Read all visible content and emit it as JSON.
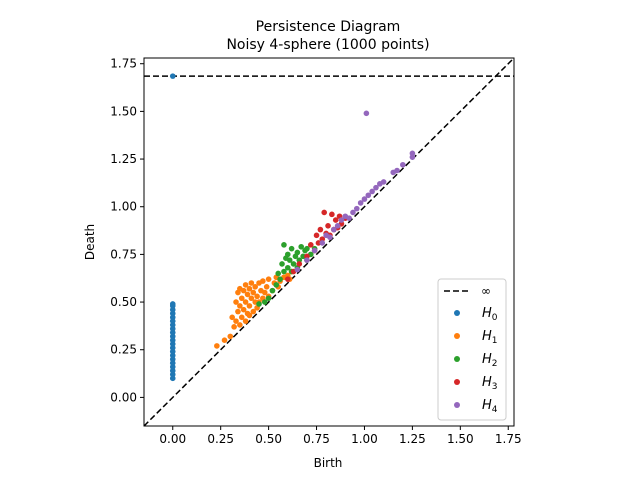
{
  "chart_data": {
    "type": "scatter",
    "title": "Persistence Diagram",
    "subtitle": "Noisy 4-sphere (1000 points)",
    "xlabel": "Birth",
    "ylabel": "Death",
    "xlim": [
      -0.15,
      1.78
    ],
    "ylim": [
      -0.15,
      1.78
    ],
    "xticks": [
      0.0,
      0.25,
      0.5,
      0.75,
      1.0,
      1.25,
      1.5,
      1.75
    ],
    "yticks": [
      0.0,
      0.25,
      0.5,
      0.75,
      1.0,
      1.25,
      1.5,
      1.75
    ],
    "xtick_labels": [
      "0.00",
      "0.25",
      "0.50",
      "0.75",
      "1.00",
      "1.25",
      "1.50",
      "1.75"
    ],
    "ytick_labels": [
      "0.00",
      "0.25",
      "0.50",
      "0.75",
      "1.00",
      "1.25",
      "1.50",
      "1.75"
    ],
    "grid": false,
    "legend_position": "lower-right",
    "infinity_line": {
      "label": "∞",
      "y": 1.685,
      "style": "dashed",
      "color": "#000000"
    },
    "diagonal": {
      "from": [
        -0.15,
        -0.15
      ],
      "to": [
        1.78,
        1.78
      ],
      "style": "dashed",
      "color": "#000000"
    },
    "series": [
      {
        "name": "H",
        "subscript": "0",
        "color": "#1f77b4",
        "points": [
          [
            0.0,
            0.1
          ],
          [
            0.0,
            0.12
          ],
          [
            0.0,
            0.14
          ],
          [
            0.0,
            0.16
          ],
          [
            0.0,
            0.18
          ],
          [
            0.0,
            0.2
          ],
          [
            0.0,
            0.22
          ],
          [
            0.0,
            0.24
          ],
          [
            0.0,
            0.26
          ],
          [
            0.0,
            0.28
          ],
          [
            0.0,
            0.3
          ],
          [
            0.0,
            0.32
          ],
          [
            0.0,
            0.34
          ],
          [
            0.0,
            0.36
          ],
          [
            0.0,
            0.38
          ],
          [
            0.0,
            0.4
          ],
          [
            0.0,
            0.42
          ],
          [
            0.0,
            0.44
          ],
          [
            0.0,
            0.46
          ],
          [
            0.0,
            0.48
          ],
          [
            0.0,
            0.49
          ],
          [
            0.0,
            1.685
          ]
        ]
      },
      {
        "name": "H",
        "subscript": "1",
        "color": "#ff7f0e",
        "points": [
          [
            0.23,
            0.27
          ],
          [
            0.27,
            0.3
          ],
          [
            0.3,
            0.32
          ],
          [
            0.31,
            0.42
          ],
          [
            0.32,
            0.37
          ],
          [
            0.33,
            0.4
          ],
          [
            0.33,
            0.5
          ],
          [
            0.34,
            0.45
          ],
          [
            0.34,
            0.55
          ],
          [
            0.35,
            0.38
          ],
          [
            0.35,
            0.48
          ],
          [
            0.35,
            0.57
          ],
          [
            0.36,
            0.42
          ],
          [
            0.36,
            0.52
          ],
          [
            0.37,
            0.46
          ],
          [
            0.37,
            0.56
          ],
          [
            0.38,
            0.4
          ],
          [
            0.38,
            0.5
          ],
          [
            0.38,
            0.59
          ],
          [
            0.39,
            0.44
          ],
          [
            0.39,
            0.54
          ],
          [
            0.4,
            0.43
          ],
          [
            0.4,
            0.48
          ],
          [
            0.4,
            0.57
          ],
          [
            0.41,
            0.52
          ],
          [
            0.41,
            0.6
          ],
          [
            0.42,
            0.45
          ],
          [
            0.42,
            0.55
          ],
          [
            0.43,
            0.5
          ],
          [
            0.43,
            0.58
          ],
          [
            0.44,
            0.47
          ],
          [
            0.44,
            0.53
          ],
          [
            0.45,
            0.6
          ],
          [
            0.45,
            0.5
          ],
          [
            0.46,
            0.56
          ],
          [
            0.47,
            0.52
          ],
          [
            0.47,
            0.61
          ],
          [
            0.48,
            0.55
          ],
          [
            0.49,
            0.58
          ],
          [
            0.5,
            0.53
          ],
          [
            0.5,
            0.62
          ],
          [
            0.52,
            0.56
          ],
          [
            0.53,
            0.6
          ],
          [
            0.54,
            0.63
          ],
          [
            0.55,
            0.58
          ],
          [
            0.56,
            0.61
          ],
          [
            0.58,
            0.63
          ],
          [
            0.6,
            0.64
          ],
          [
            0.61,
            0.62
          ],
          [
            0.62,
            0.66
          ]
        ]
      },
      {
        "name": "H",
        "subscript": "2",
        "color": "#2ca02c",
        "points": [
          [
            0.45,
            0.49
          ],
          [
            0.48,
            0.5
          ],
          [
            0.5,
            0.52
          ],
          [
            0.52,
            0.56
          ],
          [
            0.54,
            0.59
          ],
          [
            0.55,
            0.65
          ],
          [
            0.56,
            0.62
          ],
          [
            0.57,
            0.7
          ],
          [
            0.58,
            0.66
          ],
          [
            0.58,
            0.8
          ],
          [
            0.59,
            0.73
          ],
          [
            0.6,
            0.68
          ],
          [
            0.6,
            0.75
          ],
          [
            0.61,
            0.72
          ],
          [
            0.62,
            0.78
          ],
          [
            0.62,
            0.66
          ],
          [
            0.63,
            0.7
          ],
          [
            0.64,
            0.74
          ],
          [
            0.65,
            0.76
          ],
          [
            0.65,
            0.68
          ],
          [
            0.66,
            0.72
          ],
          [
            0.67,
            0.79
          ],
          [
            0.68,
            0.74
          ],
          [
            0.69,
            0.77
          ],
          [
            0.7,
            0.72
          ],
          [
            0.7,
            0.78
          ],
          [
            0.72,
            0.75
          ],
          [
            0.74,
            0.78
          ]
        ]
      },
      {
        "name": "H",
        "subscript": "3",
        "color": "#d62728",
        "points": [
          [
            0.6,
            0.62
          ],
          [
            0.63,
            0.66
          ],
          [
            0.66,
            0.7
          ],
          [
            0.7,
            0.74
          ],
          [
            0.72,
            0.8
          ],
          [
            0.74,
            0.77
          ],
          [
            0.75,
            0.85
          ],
          [
            0.76,
            0.81
          ],
          [
            0.77,
            0.88
          ],
          [
            0.78,
            0.83
          ],
          [
            0.79,
            0.97
          ],
          [
            0.8,
            0.86
          ],
          [
            0.81,
            0.9
          ],
          [
            0.82,
            0.85
          ],
          [
            0.83,
            0.96
          ],
          [
            0.84,
            0.88
          ],
          [
            0.85,
            0.93
          ],
          [
            0.86,
            0.89
          ],
          [
            0.87,
            0.95
          ],
          [
            0.88,
            0.91
          ],
          [
            0.9,
            0.94
          ]
        ]
      },
      {
        "name": "H",
        "subscript": "4",
        "color": "#9467bd",
        "points": [
          [
            0.65,
            0.67
          ],
          [
            0.7,
            0.72
          ],
          [
            0.74,
            0.77
          ],
          [
            0.78,
            0.81
          ],
          [
            0.8,
            0.85
          ],
          [
            0.82,
            0.84
          ],
          [
            0.84,
            0.88
          ],
          [
            0.86,
            0.9
          ],
          [
            0.88,
            0.93
          ],
          [
            0.9,
            0.95
          ],
          [
            0.92,
            0.94
          ],
          [
            0.94,
            0.97
          ],
          [
            0.96,
            0.99
          ],
          [
            0.98,
            1.02
          ],
          [
            1.0,
            1.04
          ],
          [
            1.01,
            1.49
          ],
          [
            1.02,
            1.06
          ],
          [
            1.04,
            1.08
          ],
          [
            1.06,
            1.1
          ],
          [
            1.08,
            1.12
          ],
          [
            1.1,
            1.13
          ],
          [
            1.15,
            1.18
          ],
          [
            1.17,
            1.19
          ],
          [
            1.2,
            1.22
          ],
          [
            1.25,
            1.26
          ],
          [
            1.25,
            1.28
          ]
        ]
      }
    ]
  }
}
